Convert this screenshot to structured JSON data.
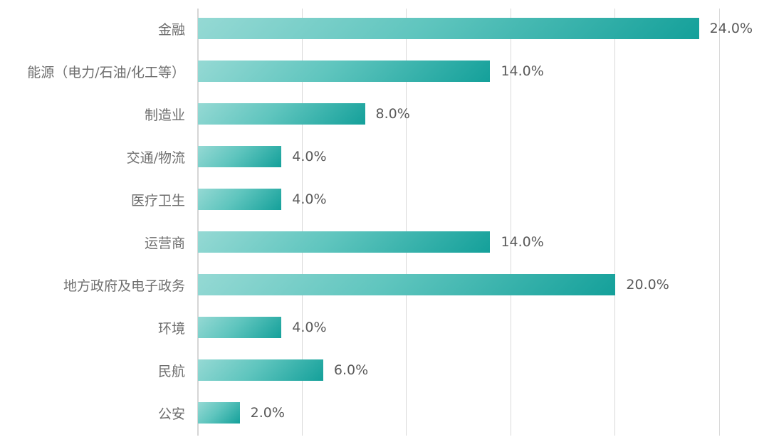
{
  "chart_data": {
    "type": "bar",
    "orientation": "horizontal",
    "title": "",
    "xlabel": "",
    "ylabel": "",
    "categories": [
      "金融",
      "能源（电力/石油/化工等）",
      "制造业",
      "交通/物流",
      "医疗卫生",
      "运营商",
      "地方政府及电子政务",
      "环境",
      "民航",
      "公安"
    ],
    "values": [
      24.0,
      14.0,
      8.0,
      4.0,
      4.0,
      14.0,
      20.0,
      4.0,
      6.0,
      2.0
    ],
    "value_labels": [
      "24.0%",
      "14.0%",
      "8.0%",
      "4.0%",
      "4.0%",
      "14.0%",
      "20.0%",
      "4.0%",
      "6.0%",
      "2.0%"
    ],
    "xlim": [
      0,
      25
    ],
    "gridline_interval": 5,
    "grid": true,
    "legend": "none",
    "colors": {
      "bar_gradient_light": "#95d9d4",
      "bar_gradient_dark": "#14a09a",
      "gridline": "#d9d9d9",
      "axis_line": "#d6d6d6",
      "category_label": "#6e6e6e",
      "value_label": "#595959",
      "background": "#ffffff"
    }
  }
}
